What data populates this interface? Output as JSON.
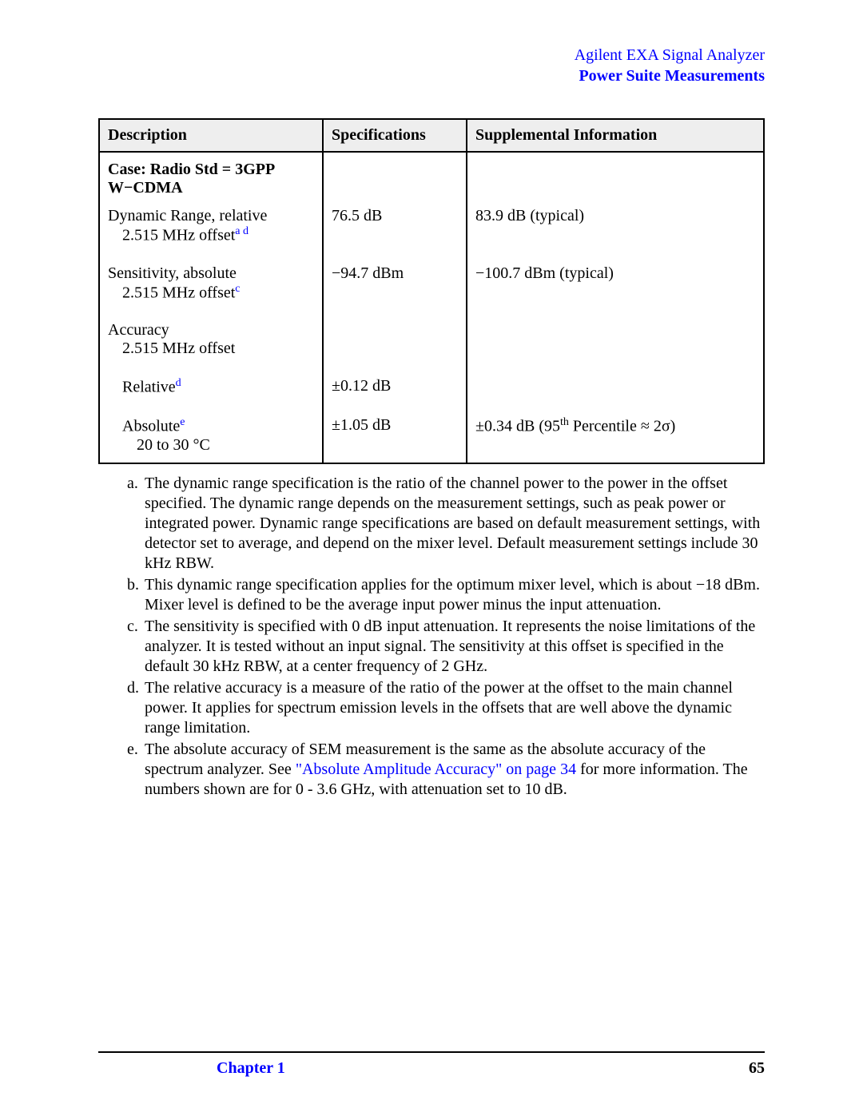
{
  "header": {
    "line1": "Agilent EXA Signal Analyzer",
    "line2": "Power Suite Measurements"
  },
  "table": {
    "columns": [
      "Description",
      "Specifications",
      "Supplemental Information"
    ],
    "case_label": "Case: Radio Std = 3GPP W−CDMA",
    "rows": {
      "dynamic_range": {
        "label": "Dynamic Range, relative",
        "sub": "2.515 MHz offset",
        "fn": "a d",
        "spec": "76.5 dB",
        "supp": "83.9 dB (typical)"
      },
      "sensitivity": {
        "label": "Sensitivity, absolute",
        "sub": "2.515 MHz offset",
        "fn": "c",
        "spec": "−94.7 dBm",
        "supp": "−100.7 dBm (typical)"
      },
      "accuracy": {
        "label": "Accuracy",
        "sub": "2.515 MHz offset"
      },
      "relative": {
        "label": "Relative",
        "fn": "d",
        "spec": "±0.12 dB",
        "supp": ""
      },
      "absolute": {
        "label": "Absolute",
        "fn": "e",
        "sub": "20 to 30 °C",
        "spec": "±1.05 dB",
        "supp_pre": "±0.34 dB (95",
        "supp_th": "th",
        "supp_post": " Percentile ≈ 2σ)"
      }
    }
  },
  "footnotes": {
    "a": "The dynamic range specification is the ratio of the channel power to the power in the offset specified. The dynamic range depends on the measurement settings, such as peak power or integrated power. Dynamic range specifications are based on default measurement settings, with detector set to average, and depend on the mixer level. Default measurement settings include 30 kHz RBW.",
    "b": "This dynamic range specification applies for the optimum mixer level, which is about −18 dBm. Mixer level is defined to be the average input power minus the input attenuation.",
    "c": "The sensitivity is specified with 0 dB input attenuation. It represents the noise limitations of the analyzer. It is tested without an input signal. The sensitivity at this offset is specified in the default 30 kHz RBW, at a center frequency of 2 GHz.",
    "d": "The relative accuracy is a measure of the ratio of the power at the offset to the main channel power. It applies for spectrum emission levels in the offsets that are well above the dynamic range limitation.",
    "e_pre": "The absolute accuracy of SEM measurement is the same as the absolute accuracy of the spectrum analyzer. See ",
    "e_link": "\"Absolute Amplitude Accuracy\" on page  34",
    "e_post": " for more information. The numbers shown are for 0 - 3.6 GHz, with attenuation set to 10 dB."
  },
  "footer": {
    "chapter": "Chapter 1",
    "page": "65"
  }
}
